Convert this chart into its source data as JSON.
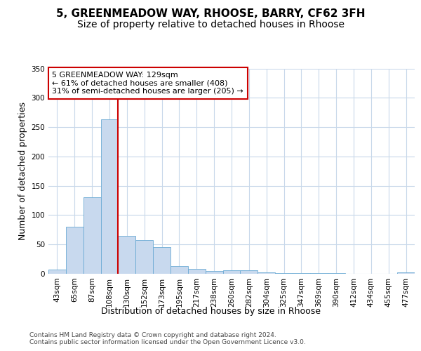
{
  "title_line1": "5, GREENMEADOW WAY, RHOOSE, BARRY, CF62 3FH",
  "title_line2": "Size of property relative to detached houses in Rhoose",
  "xlabel": "Distribution of detached houses by size in Rhoose",
  "ylabel": "Number of detached properties",
  "categories": [
    "43sqm",
    "65sqm",
    "87sqm",
    "108sqm",
    "130sqm",
    "152sqm",
    "173sqm",
    "195sqm",
    "217sqm",
    "238sqm",
    "260sqm",
    "282sqm",
    "304sqm",
    "325sqm",
    "347sqm",
    "369sqm",
    "390sqm",
    "412sqm",
    "434sqm",
    "455sqm",
    "477sqm"
  ],
  "values": [
    7,
    80,
    130,
    263,
    65,
    57,
    46,
    13,
    8,
    5,
    6,
    6,
    2,
    1,
    1,
    1,
    1,
    0,
    0,
    0,
    2
  ],
  "bar_color": "#c8d9ee",
  "bar_edge_color": "#6aaad4",
  "property_line_color": "#cc0000",
  "annotation_text": "5 GREENMEADOW WAY: 129sqm\n← 61% of detached houses are smaller (408)\n31% of semi-detached houses are larger (205) →",
  "annotation_box_color": "#ffffff",
  "annotation_box_edge": "#cc0000",
  "ylim": [
    0,
    350
  ],
  "yticks": [
    0,
    50,
    100,
    150,
    200,
    250,
    300,
    350
  ],
  "background_color": "#ffffff",
  "grid_color": "#c8d8ea",
  "footer_text": "Contains HM Land Registry data © Crown copyright and database right 2024.\nContains public sector information licensed under the Open Government Licence v3.0.",
  "title_fontsize": 11,
  "subtitle_fontsize": 10,
  "axis_label_fontsize": 9,
  "tick_fontsize": 7.5,
  "annotation_fontsize": 8,
  "footer_fontsize": 6.5
}
